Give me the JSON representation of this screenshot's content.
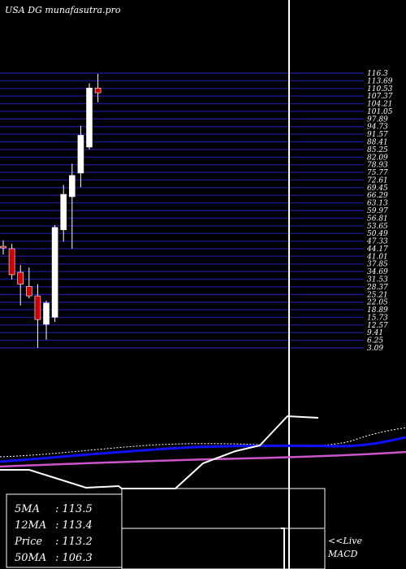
{
  "title": "USA DG munafasutra.pro",
  "colors": {
    "background": "#000000",
    "grid": "#1a1a8c",
    "bull": "#ffffff",
    "bear": "#cc0000",
    "ma_short": "#ffffff",
    "ma_mid": "#1010ff",
    "ma_long": "#cc55cc",
    "macd": "#ffffff"
  },
  "chart_data": {
    "type": "candlestick",
    "title": "USA DG munafasutra.pro",
    "y_labels": [
      "116.3",
      "113.69",
      "110.53",
      "107.37",
      "104.21",
      "101.05",
      "97.89",
      "94.73",
      "91.57",
      "88.41",
      "85.25",
      "82.09",
      "78.93",
      "75.77",
      "72.61",
      "69.45",
      "66.29",
      "63.13",
      "59.97",
      "56.81",
      "53.65",
      "50.49",
      "47.33",
      "44.17",
      "41.01",
      "37.85",
      "34.69",
      "31.53",
      "28.37",
      "25.21",
      "22.05",
      "18.89",
      "15.73",
      "12.57",
      "9.41",
      "6.25",
      "3.09"
    ],
    "ylim": [
      0,
      116.3
    ],
    "candles": [
      {
        "open": 43.0,
        "high": 45.5,
        "low": 39.5,
        "close": 42.5
      },
      {
        "open": 42.0,
        "high": 44.0,
        "low": 29.0,
        "close": 31.0
      },
      {
        "open": 32.0,
        "high": 35.0,
        "low": 18.0,
        "close": 27.0
      },
      {
        "open": 26.0,
        "high": 34.0,
        "low": 21.0,
        "close": 22.0
      },
      {
        "open": 22.0,
        "high": 27.0,
        "low": 0.0,
        "close": 12.0
      },
      {
        "open": 10.0,
        "high": 20.0,
        "low": 3.5,
        "close": 19.0
      },
      {
        "open": 13.0,
        "high": 52.0,
        "low": 11.0,
        "close": 51.0
      },
      {
        "open": 50.0,
        "high": 69.0,
        "low": 45.0,
        "close": 65.0
      },
      {
        "open": 64.0,
        "high": 78.0,
        "low": 42.0,
        "close": 73.0
      },
      {
        "open": 74.0,
        "high": 94.0,
        "low": 68.0,
        "close": 90.0
      },
      {
        "open": 85.0,
        "high": 112.0,
        "low": 84.0,
        "close": 110.0
      },
      {
        "open": 110.0,
        "high": 116.0,
        "low": 104.0,
        "close": 108.0
      }
    ],
    "moving_averages": [
      {
        "name": "5MA",
        "value": 113.5
      },
      {
        "name": "12MA",
        "value": 113.4
      },
      {
        "name": "50MA",
        "value": 106.3
      }
    ],
    "price": 113.2
  },
  "stats": [
    {
      "label": "5MA",
      "value": "113.5"
    },
    {
      "label": "12MA",
      "value": "113.4"
    },
    {
      "label": "Price",
      "value": "113.2"
    },
    {
      "label": "50MA",
      "value": "106.3"
    }
  ],
  "macd_label_line1": "<<Live",
  "macd_label_line2": "MACD"
}
